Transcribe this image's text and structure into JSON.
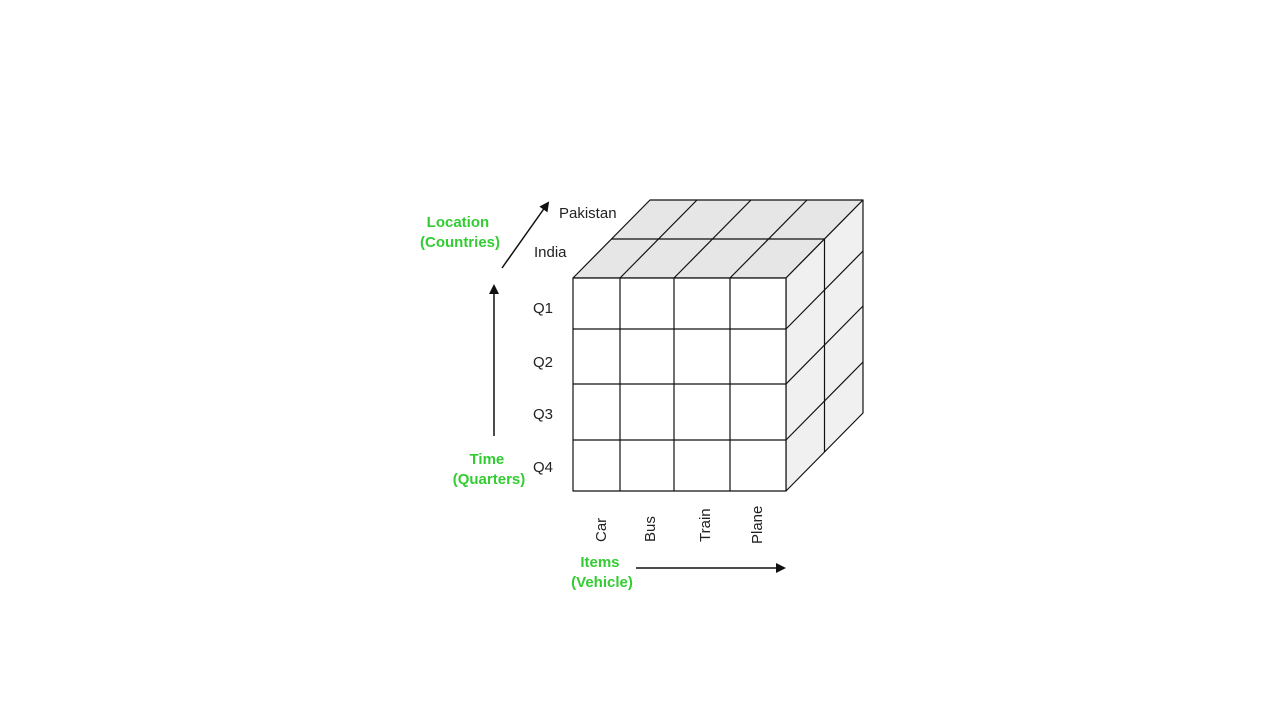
{
  "colors": {
    "axis_title": "#33cc33",
    "line": "#111111",
    "top_face": "#e6e6e6",
    "side_face": "#f0f0f0",
    "front_face": "#ffffff"
  },
  "axes": {
    "location": {
      "line1": "Location",
      "line2": "(Countries)"
    },
    "time": {
      "line1": "Time",
      "line2": "(Quarters)"
    },
    "items": {
      "line1": "Items",
      "line2": "(Vehicle)"
    }
  },
  "locations": [
    "India",
    "Pakistan"
  ],
  "quarters": [
    "Q1",
    "Q2",
    "Q3",
    "Q4"
  ],
  "vehicles": [
    "Car",
    "Bus",
    "Train",
    "Plane"
  ]
}
